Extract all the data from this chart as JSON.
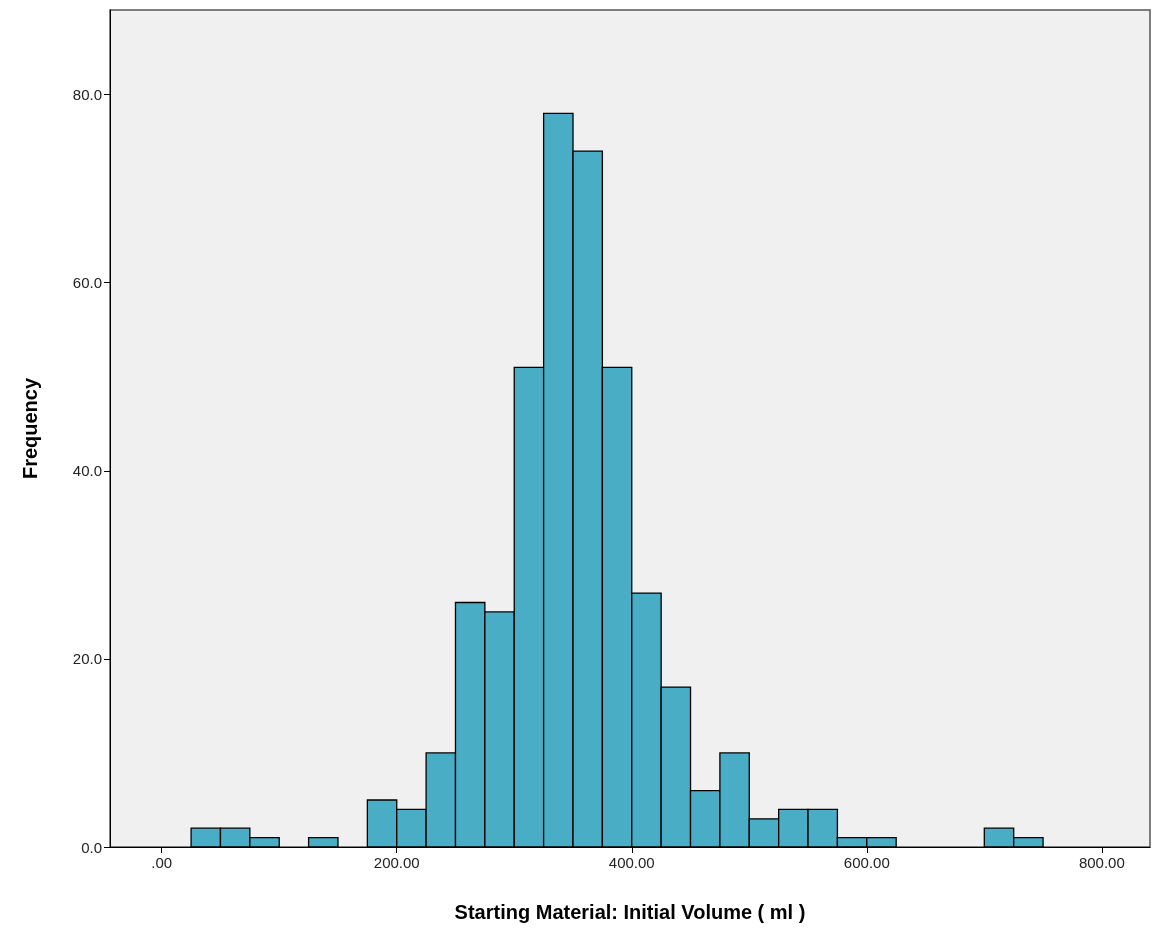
{
  "chart_data": {
    "type": "histogram",
    "xlabel": "Starting Material: Initial Volume ( ml )",
    "ylabel": "Frequency",
    "bins": [
      25,
      50,
      75,
      100,
      125,
      150,
      175,
      200,
      225,
      250,
      275,
      300,
      325,
      350,
      375,
      400,
      425,
      450,
      475,
      500,
      525,
      550,
      575,
      600,
      625,
      650,
      675,
      700,
      725,
      750
    ],
    "values": [
      2,
      2,
      1,
      0,
      1,
      0,
      5,
      4,
      10,
      26,
      25,
      51,
      78,
      74,
      51,
      27,
      17,
      6,
      10,
      3,
      4,
      4,
      1,
      1,
      0,
      0,
      0,
      2,
      1
    ],
    "color": "#4aadc6",
    "xlim": [
      -44,
      841
    ],
    "xticks": [
      {
        "value": 0,
        "label": ".00"
      },
      {
        "value": 200,
        "label": "200.00"
      },
      {
        "value": 400,
        "label": "400.00"
      },
      {
        "value": 600,
        "label": "600.00"
      },
      {
        "value": 800,
        "label": "800.00"
      }
    ],
    "ylim": [
      0,
      89
    ],
    "yticks": [
      {
        "value": 0,
        "label": "0.0"
      },
      {
        "value": 20,
        "label": "20.0"
      },
      {
        "value": 40,
        "label": "40.0"
      },
      {
        "value": 60,
        "label": "60.0"
      },
      {
        "value": 80,
        "label": "80.0"
      }
    ],
    "grid": false
  }
}
